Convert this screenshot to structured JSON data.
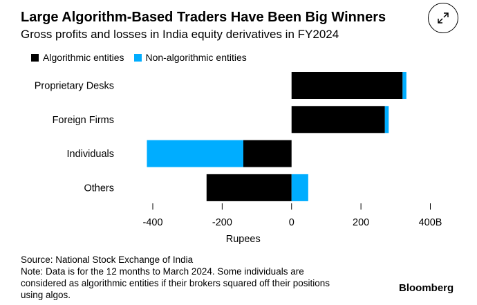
{
  "title": "Large Algorithm-Based Traders Have Been Big Winners",
  "subtitle": "Gross profits and losses in India equity derivatives in FY2024",
  "icons": {
    "expand": "expand-arrows-icon"
  },
  "colors": {
    "algorithmic": "#000000",
    "non_algorithmic": "#00adff"
  },
  "chart_data": {
    "type": "bar",
    "orientation": "horizontal",
    "stacked": true,
    "categories": [
      "Proprietary Desks",
      "Foreign Firms",
      "Individuals",
      "Others"
    ],
    "series": [
      {
        "name": "Algorithmic entities",
        "values": [
          320,
          269,
          -139,
          -245
        ]
      },
      {
        "name": "Non-algorithmic entities",
        "values": [
          11,
          11,
          -278,
          48
        ]
      }
    ],
    "xlabel": "Rupees",
    "xlim": [
      -400,
      400
    ],
    "xticks": [
      -400,
      -200,
      0,
      200,
      400
    ],
    "xtick_labels": [
      "-400",
      "-200",
      "0",
      "200",
      "400B"
    ],
    "legend": "top-left",
    "grid": false
  },
  "footer": {
    "source": "Source: National Stock Exchange of India",
    "note_lines": [
      "Note: Data is for the 12 months to March 2024. Some individuals are",
      "considered as algorithmic entities if their brokers squared off their positions",
      "using algos."
    ]
  },
  "brand": "Bloomberg"
}
